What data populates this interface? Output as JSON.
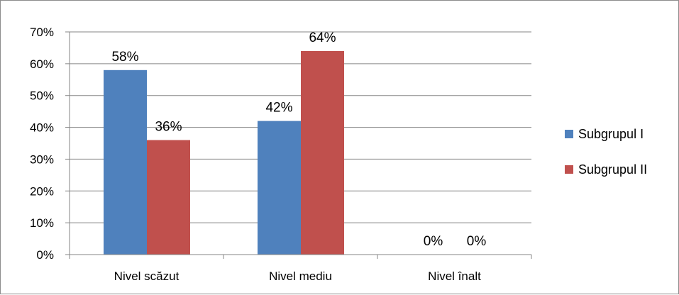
{
  "chart_data": {
    "type": "bar",
    "title": "",
    "xlabel": "",
    "ylabel": "",
    "categories": [
      "Nivel scăzut",
      "Nivel mediu",
      "Nivel înalt"
    ],
    "series": [
      {
        "name": "Subgrupul I",
        "values": [
          58,
          42,
          0
        ],
        "labels": [
          "58%",
          "42%",
          "0%"
        ]
      },
      {
        "name": "Subgrupul II",
        "values": [
          36,
          64,
          0
        ],
        "labels": [
          "36%",
          "64%",
          "0%"
        ]
      }
    ],
    "ylim": [
      0,
      70
    ],
    "y_ticks": [
      "0%",
      "10%",
      "20%",
      "30%",
      "40%",
      "50%",
      "60%",
      "70%"
    ],
    "grid": true,
    "legend_position": "right",
    "colors": [
      "#4f81bd",
      "#c0504d"
    ]
  }
}
